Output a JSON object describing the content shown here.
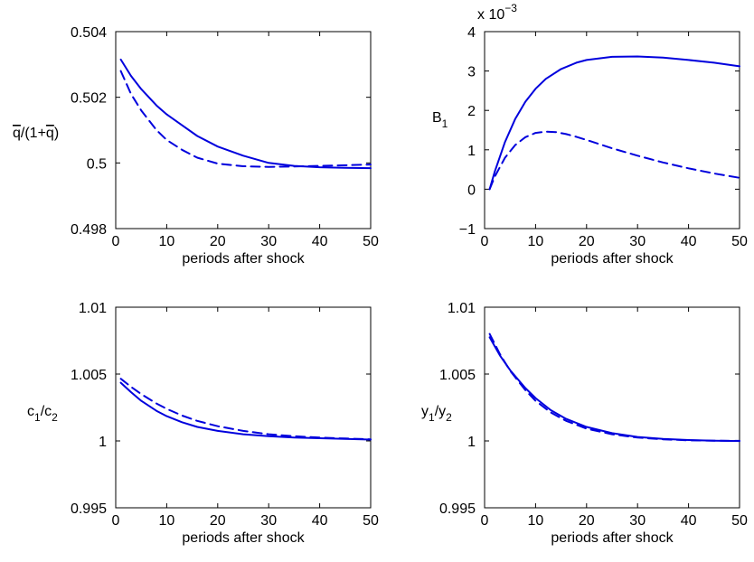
{
  "figure": {
    "line_color": "#0000dd"
  },
  "chart_data": [
    {
      "type": "line",
      "title": "",
      "xlabel": "periods after shock",
      "ylabel_main": "q/(1+q)",
      "ylabel_sub": "",
      "ylabel_overbar": true,
      "exponent_label": "",
      "xlim": [
        0,
        50
      ],
      "ylim": [
        0.498,
        0.504
      ],
      "xticks": [
        0,
        10,
        20,
        30,
        40,
        50
      ],
      "xtick_labels": [
        "0",
        "10",
        "20",
        "30",
        "40",
        "50"
      ],
      "yticks": [
        0.498,
        0.5,
        0.502,
        0.504
      ],
      "ytick_labels": [
        "0.498",
        "0.5",
        "0.502",
        "0.504"
      ],
      "series": [
        {
          "style": "solid",
          "x": [
            1,
            3,
            5,
            8,
            10,
            13,
            16,
            20,
            25,
            30,
            35,
            40,
            45,
            50
          ],
          "y": [
            0.50315,
            0.50265,
            0.50225,
            0.50175,
            0.50148,
            0.50115,
            0.50082,
            0.5005,
            0.50022,
            0.5,
            0.49991,
            0.49987,
            0.49985,
            0.49984
          ]
        },
        {
          "style": "dashed",
          "x": [
            1,
            3,
            5,
            8,
            10,
            13,
            16,
            20,
            25,
            30,
            35,
            40,
            45,
            50
          ],
          "y": [
            0.5028,
            0.5021,
            0.5016,
            0.501,
            0.5007,
            0.5004,
            0.50016,
            0.49998,
            0.4999,
            0.49988,
            0.49989,
            0.49991,
            0.49993,
            0.49995
          ]
        }
      ]
    },
    {
      "type": "line",
      "title": "",
      "xlabel": "periods after shock",
      "ylabel_main": "B",
      "ylabel_sub": "1",
      "ylabel_overbar": false,
      "exponent_label": "x 10",
      "exponent_power": "−3",
      "xlim": [
        0,
        50
      ],
      "ylim": [
        -1,
        4
      ],
      "xticks": [
        0,
        10,
        20,
        30,
        40,
        50
      ],
      "xtick_labels": [
        "0",
        "10",
        "20",
        "30",
        "40",
        "50"
      ],
      "yticks": [
        -1,
        0,
        1,
        2,
        3,
        4
      ],
      "ytick_labels": [
        "−1",
        "0",
        "1",
        "2",
        "3",
        "4"
      ],
      "series": [
        {
          "style": "solid",
          "x": [
            1,
            2,
            4,
            6,
            8,
            10,
            12,
            15,
            18,
            20,
            25,
            30,
            35,
            40,
            45,
            50
          ],
          "y": [
            0.0,
            0.45,
            1.2,
            1.78,
            2.22,
            2.55,
            2.8,
            3.05,
            3.21,
            3.28,
            3.36,
            3.37,
            3.34,
            3.28,
            3.21,
            3.12
          ]
        },
        {
          "style": "dashed",
          "x": [
            1,
            2,
            4,
            6,
            8,
            10,
            12,
            14,
            16,
            18,
            20,
            25,
            30,
            35,
            40,
            45,
            50
          ],
          "y": [
            0.0,
            0.32,
            0.8,
            1.12,
            1.32,
            1.43,
            1.46,
            1.45,
            1.4,
            1.33,
            1.25,
            1.04,
            0.85,
            0.68,
            0.53,
            0.4,
            0.29
          ]
        }
      ]
    },
    {
      "type": "line",
      "title": "",
      "xlabel": "periods after shock",
      "ylabel_main": "c",
      "ylabel_sub": "1",
      "ylabel_sep": "/c",
      "ylabel_sub2": "2",
      "ylabel_overbar": false,
      "exponent_label": "",
      "xlim": [
        0,
        50
      ],
      "ylim": [
        0.995,
        1.01
      ],
      "xticks": [
        0,
        10,
        20,
        30,
        40,
        50
      ],
      "xtick_labels": [
        "0",
        "10",
        "20",
        "30",
        "40",
        "50"
      ],
      "yticks": [
        0.995,
        1.0,
        1.005,
        1.01
      ],
      "ytick_labels": [
        "0.995",
        "1",
        "1.005",
        "1.01"
      ],
      "series": [
        {
          "style": "solid",
          "x": [
            1,
            3,
            5,
            8,
            10,
            13,
            16,
            20,
            25,
            30,
            35,
            40,
            45,
            50
          ],
          "y": [
            1.00435,
            1.00365,
            1.003,
            1.00225,
            1.00185,
            1.0014,
            1.00105,
            1.00075,
            1.0005,
            1.00035,
            1.00025,
            1.0002,
            1.00015,
            1.0001
          ]
        },
        {
          "style": "dashed",
          "x": [
            1,
            3,
            5,
            8,
            10,
            13,
            16,
            20,
            25,
            30,
            35,
            40,
            45,
            50
          ],
          "y": [
            1.00465,
            1.00405,
            1.0035,
            1.0028,
            1.0024,
            1.0019,
            1.0015,
            1.0011,
            1.00075,
            1.0005,
            1.00035,
            1.00025,
            1.00018,
            1.00012
          ]
        }
      ]
    },
    {
      "type": "line",
      "title": "",
      "xlabel": "periods after shock",
      "ylabel_main": "y",
      "ylabel_sub": "1",
      "ylabel_sep": "/y",
      "ylabel_sub2": "2",
      "ylabel_overbar": false,
      "exponent_label": "",
      "xlim": [
        0,
        50
      ],
      "ylim": [
        0.995,
        1.01
      ],
      "xticks": [
        0,
        10,
        20,
        30,
        40,
        50
      ],
      "xtick_labels": [
        "0",
        "10",
        "20",
        "30",
        "40",
        "50"
      ],
      "yticks": [
        0.995,
        1.0,
        1.005,
        1.01
      ],
      "ytick_labels": [
        "0.995",
        "1",
        "1.005",
        "1.01"
      ],
      "series": [
        {
          "style": "solid",
          "x": [
            1,
            3,
            5,
            8,
            10,
            13,
            16,
            20,
            25,
            30,
            35,
            40,
            45,
            50
          ],
          "y": [
            1.00775,
            1.0064,
            1.0053,
            1.00395,
            1.0032,
            1.0023,
            1.00165,
            1.00105,
            1.00058,
            1.0003,
            1.00015,
            1.00007,
            1.00002,
            0.99999
          ]
        },
        {
          "style": "dashed",
          "x": [
            1,
            3,
            5,
            8,
            10,
            13,
            16,
            20,
            25,
            30,
            35,
            40,
            45,
            50
          ],
          "y": [
            1.008,
            1.0065,
            1.00525,
            1.0038,
            1.003,
            1.00212,
            1.0015,
            1.00092,
            1.0005,
            1.00025,
            1.00012,
            1.00005,
            1.00002,
            1.00001
          ]
        }
      ]
    }
  ]
}
